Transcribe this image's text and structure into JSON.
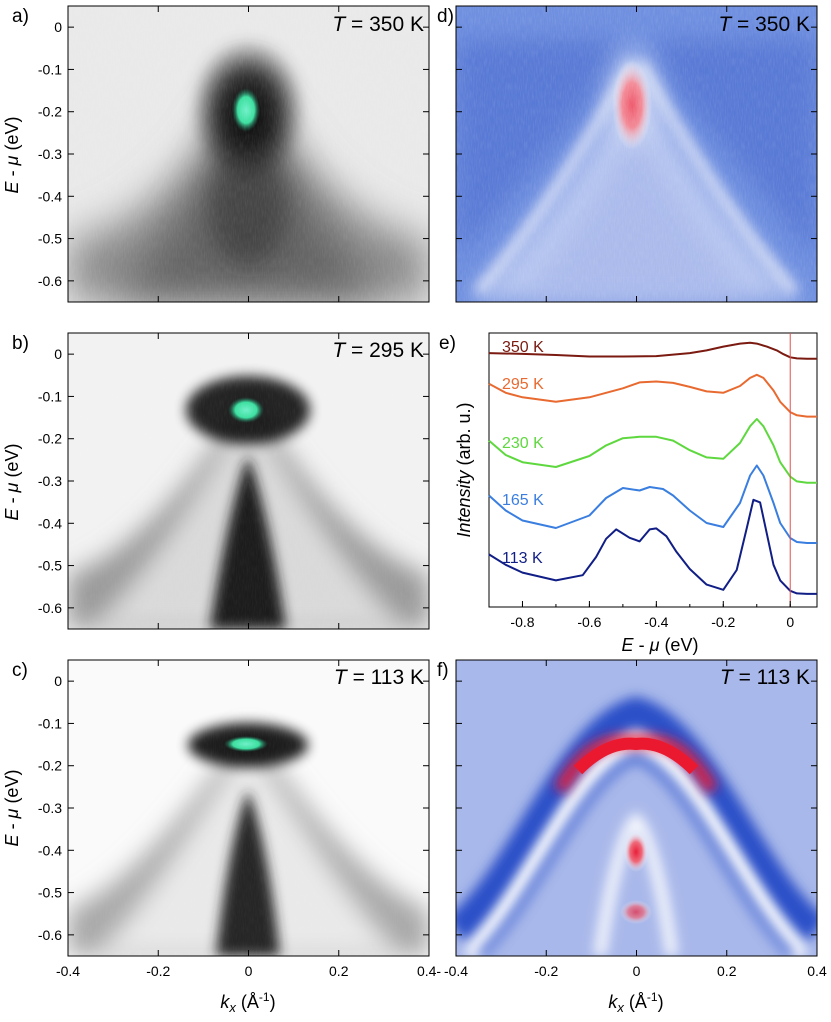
{
  "figure": {
    "panel_letters": [
      "a)",
      "b)",
      "c)",
      "d)",
      "e)",
      "f)"
    ]
  },
  "chart_data": [
    {
      "panel": "a)",
      "type": "heatmap",
      "title": "T = 350 K",
      "title_parts": {
        "italic": "T",
        "rest": " = 350 K"
      },
      "ylabel": {
        "italic": "E",
        "mid": " - ",
        "italic2": "μ",
        "rest": " (eV)"
      },
      "xlim": [
        -0.4,
        0.4
      ],
      "ylim": [
        -0.65,
        0.05
      ],
      "yticks": [
        0,
        -0.1,
        -0.2,
        -0.3,
        -0.4,
        -0.5,
        -0.6
      ],
      "ytick_labels": [
        "0",
        "-0.1",
        "-0.2",
        "-0.3",
        "-0.4",
        "-0.5",
        "-0.6"
      ],
      "colormap": "gray-reversed-with-green-saturation",
      "hotspot": {
        "k": 0.0,
        "E": -0.16
      }
    },
    {
      "panel": "b)",
      "type": "heatmap",
      "title": "T = 295 K",
      "title_parts": {
        "italic": "T",
        "rest": " = 295 K"
      },
      "ylabel": {
        "italic": "E",
        "mid": " - ",
        "italic2": "μ",
        "rest": " (eV)"
      },
      "xlim": [
        -0.4,
        0.4
      ],
      "ylim": [
        -0.65,
        0.05
      ],
      "yticks": [
        0,
        -0.1,
        -0.2,
        -0.3,
        -0.4,
        -0.5,
        -0.6
      ],
      "ytick_labels": [
        "0",
        "-0.1",
        "-0.2",
        "-0.3",
        "-0.4",
        "-0.5",
        "-0.6"
      ],
      "colormap": "gray-reversed-with-green-saturation",
      "hotspot": {
        "k": 0.0,
        "E": -0.1
      }
    },
    {
      "panel": "c)",
      "type": "heatmap",
      "title": "T = 113 K",
      "title_parts": {
        "italic": "T",
        "rest": " = 113 K"
      },
      "ylabel": {
        "italic": "E",
        "mid": " - ",
        "italic2": "μ",
        "rest": " (eV)"
      },
      "xlabel": {
        "italic": "k",
        "sub": "x",
        "rest": " (Å",
        "sup": "-1",
        "end": ")"
      },
      "xlim": [
        -0.4,
        0.4
      ],
      "ylim": [
        -0.65,
        0.05
      ],
      "xticks": [
        -0.4,
        -0.2,
        0,
        0.2,
        0.4
      ],
      "xtick_labels": [
        "-0.4",
        "-0.2",
        "0",
        "0.2",
        "0.4-"
      ],
      "yticks": [
        0,
        -0.1,
        -0.2,
        -0.3,
        -0.4,
        -0.5,
        -0.6
      ],
      "ytick_labels": [
        "0",
        "-0.1",
        "-0.2",
        "-0.3",
        "-0.4",
        "-0.5",
        "-0.6"
      ],
      "colormap": "gray-reversed-with-green-saturation",
      "hotspot": {
        "k": 0.0,
        "E": -0.11
      }
    },
    {
      "panel": "d)",
      "type": "heatmap",
      "title": "T = 350 K",
      "title_parts": {
        "italic": "T",
        "rest": " = 350 K"
      },
      "xlim": [
        -0.4,
        0.4
      ],
      "ylim": [
        -0.65,
        0.05
      ],
      "colormap": "blue-white-red",
      "background": "#6f8fdf"
    },
    {
      "panel": "e)",
      "type": "line",
      "xlabel": {
        "italic": "E",
        "mid": " - ",
        "italic2": "μ",
        "rest": "  (eV)"
      },
      "ylabel": {
        "italic": "Intensity",
        "rest": " (arb. u.)"
      },
      "xlim": [
        -0.9,
        0.08
      ],
      "xticks": [
        -0.8,
        -0.6,
        -0.4,
        -0.2,
        0
      ],
      "xtick_labels": [
        "-0.8",
        "-0.6",
        "-0.4",
        "-0.2",
        "0"
      ],
      "vline_x": 0,
      "vline_color": "#e05050",
      "series": [
        {
          "name": "350 K",
          "color": "#7a1a10",
          "offset": 0.0,
          "x": [
            -0.9,
            -0.8,
            -0.7,
            -0.6,
            -0.5,
            -0.4,
            -0.3,
            -0.25,
            -0.2,
            -0.15,
            -0.12,
            -0.1,
            -0.07,
            -0.04,
            -0.02,
            0.0,
            0.02,
            0.05,
            0.08
          ],
          "y": [
            0.05,
            0.03,
            0.0,
            -0.04,
            -0.04,
            -0.03,
            0.05,
            0.12,
            0.22,
            0.3,
            0.32,
            0.3,
            0.22,
            0.12,
            0.02,
            -0.06,
            -0.09,
            -0.1,
            -0.1
          ]
        },
        {
          "name": "295 K",
          "color": "#e86a30",
          "offset": 0.0,
          "x": [
            -0.9,
            -0.85,
            -0.8,
            -0.7,
            -0.6,
            -0.5,
            -0.45,
            -0.4,
            -0.35,
            -0.3,
            -0.25,
            -0.2,
            -0.15,
            -0.12,
            -0.1,
            -0.08,
            -0.05,
            -0.03,
            0.0,
            0.02,
            0.05,
            0.08
          ],
          "y": [
            0.25,
            0.05,
            -0.05,
            -0.15,
            -0.05,
            0.15,
            0.28,
            0.3,
            0.27,
            0.18,
            0.08,
            0.05,
            0.2,
            0.38,
            0.45,
            0.38,
            0.1,
            -0.15,
            -0.38,
            -0.45,
            -0.48,
            -0.48
          ]
        },
        {
          "name": "230 K",
          "color": "#5ed83e",
          "offset": 0.0,
          "x": [
            -0.9,
            -0.85,
            -0.8,
            -0.7,
            -0.6,
            -0.55,
            -0.5,
            -0.45,
            -0.4,
            -0.35,
            -0.3,
            -0.25,
            -0.2,
            -0.15,
            -0.12,
            -0.1,
            -0.08,
            -0.05,
            -0.03,
            0.0,
            0.02,
            0.05,
            0.08
          ],
          "y": [
            0.3,
            0.0,
            -0.15,
            -0.25,
            -0.02,
            0.2,
            0.35,
            0.38,
            0.38,
            0.3,
            0.1,
            -0.05,
            -0.08,
            0.25,
            0.6,
            0.75,
            0.6,
            0.2,
            -0.15,
            -0.45,
            -0.55,
            -0.58,
            -0.58
          ]
        },
        {
          "name": "165 K",
          "color": "#3a7ee0",
          "offset": 0.0,
          "x": [
            -0.9,
            -0.85,
            -0.8,
            -0.7,
            -0.6,
            -0.55,
            -0.5,
            -0.45,
            -0.42,
            -0.38,
            -0.35,
            -0.3,
            -0.25,
            -0.2,
            -0.15,
            -0.12,
            -0.1,
            -0.08,
            -0.05,
            -0.03,
            0.0,
            0.02,
            0.05,
            0.08
          ],
          "y": [
            0.35,
            0.05,
            -0.15,
            -0.3,
            -0.05,
            0.3,
            0.5,
            0.45,
            0.52,
            0.48,
            0.35,
            0.05,
            -0.2,
            -0.28,
            0.2,
            0.75,
            0.95,
            0.75,
            0.2,
            -0.2,
            -0.5,
            -0.58,
            -0.6,
            -0.6
          ]
        },
        {
          "name": "113 K",
          "color": "#101e86",
          "offset": 0.0,
          "x": [
            -0.9,
            -0.85,
            -0.8,
            -0.7,
            -0.62,
            -0.58,
            -0.55,
            -0.52,
            -0.48,
            -0.45,
            -0.42,
            -0.4,
            -0.37,
            -0.34,
            -0.3,
            -0.25,
            -0.2,
            -0.16,
            -0.13,
            -0.11,
            -0.09,
            -0.07,
            -0.05,
            -0.03,
            0.0,
            0.02,
            0.05,
            0.08
          ],
          "y": [
            0.3,
            0.1,
            -0.05,
            -0.2,
            -0.1,
            0.25,
            0.6,
            0.78,
            0.62,
            0.55,
            0.78,
            0.8,
            0.65,
            0.35,
            0.02,
            -0.28,
            -0.38,
            0.0,
            0.8,
            1.35,
            1.3,
            0.7,
            0.1,
            -0.2,
            -0.4,
            -0.45,
            -0.46,
            -0.46
          ]
        }
      ]
    },
    {
      "panel": "f)",
      "type": "heatmap",
      "title": "T = 113 K",
      "title_parts": {
        "italic": "T",
        "rest": " = 113 K"
      },
      "xlabel": {
        "italic": "k",
        "sub": "x",
        "rest": " (Å",
        "sup": "-1",
        "end": ")"
      },
      "xlim": [
        -0.4,
        0.4
      ],
      "ylim": [
        -0.65,
        0.05
      ],
      "xticks": [
        -0.4,
        -0.2,
        0,
        0.2,
        0.4
      ],
      "xtick_labels": [
        "-0.4",
        "-0.2",
        "0",
        "0.2",
        "0.4"
      ],
      "colormap": "blue-white-red",
      "background": "#a9b8ea"
    }
  ]
}
